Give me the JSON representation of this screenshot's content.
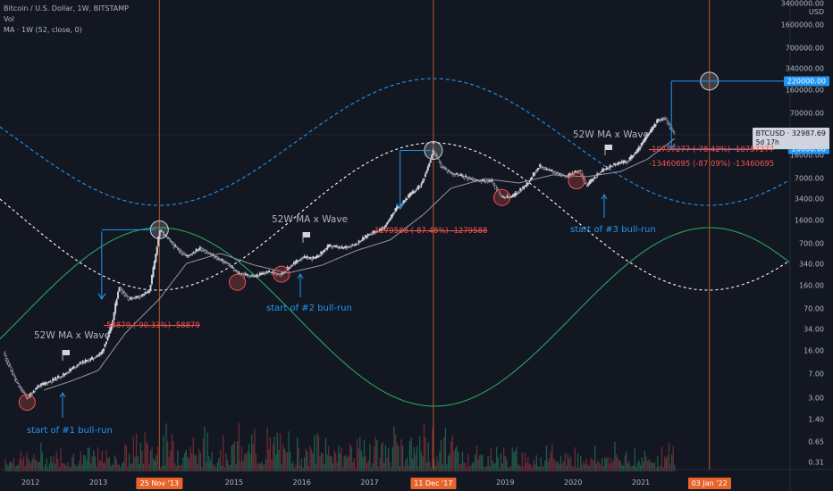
{
  "legend": {
    "title": "Bitcoin / U.S. Dollar, 1W, BITSTAMP",
    "vol": "Vol",
    "ma": "MA · 1W (52, close, 0)"
  },
  "price_axis": {
    "currency": "USD",
    "ticks": [
      "3400000.00",
      "1600000.00",
      "700000.00",
      "340000.00",
      "160000.00",
      "70000.00",
      "16000.00",
      "7000.00",
      "3400.00",
      "1600.00",
      "700.00",
      "340.00",
      "160.00",
      "70.00",
      "34.00",
      "16.00",
      "7.00",
      "3.00",
      "1.40",
      "0.65",
      "0.31"
    ],
    "tick_values": [
      3400000,
      1600000,
      700000,
      340000,
      160000,
      70000,
      16000,
      7000,
      3400,
      1600,
      700,
      340,
      160,
      70,
      34,
      16,
      7,
      3,
      1.4,
      0.65,
      0.31
    ],
    "tags": [
      {
        "label": "220000.00",
        "value": 220000
      },
      {
        "label": "20000.00",
        "value": 20000
      }
    ],
    "current": {
      "label": "BTCUSD",
      "price": "32987.69",
      "countdown": "5d 17h"
    }
  },
  "time_axis": {
    "ticks": [
      {
        "label": "2012",
        "year": 2012.0
      },
      {
        "label": "2013",
        "year": 2013.0
      },
      {
        "label": "2015",
        "year": 2015.0
      },
      {
        "label": "2016",
        "year": 2016.0
      },
      {
        "label": "2017",
        "year": 2017.0
      },
      {
        "label": "2019",
        "year": 2019.0
      },
      {
        "label": "2020",
        "year": 2020.0
      },
      {
        "label": "2021",
        "year": 2021.0
      }
    ],
    "tags": [
      {
        "label": "25 Nov '13",
        "year": 2013.9
      },
      {
        "label": "11 Dec '17",
        "year": 2017.94
      },
      {
        "label": "03 Jan '22",
        "year": 2022.01
      }
    ]
  },
  "annotations": {
    "wave_labels": [
      "52W MA x Wave",
      "52W MA x Wave",
      "52W MA x Wave"
    ],
    "bull_runs": [
      "start of #1 bull-run",
      "start of #2 bull-run",
      "start of #3 bull-run"
    ],
    "drops": [
      {
        "text": "-58879 (-90.33%) -58879",
        "struck": true
      },
      {
        "text": "-1279588 (-87.48%) -1279588",
        "struck": true
      },
      {
        "text": "-10757277 (-78.42%) -10757277",
        "struck": true
      },
      {
        "text": "-13460695 (-87.09%) -13460695",
        "struck": false
      }
    ]
  },
  "colors": {
    "background": "#131722",
    "candle_up": "#d1d4dc",
    "ma_line": "#9598a1",
    "blue_wave": "#2196f3",
    "white_wave": "#ffffff",
    "green_wave": "#26a65b",
    "vertical_line": "#e8642b",
    "bottom_circle": "#ef5350",
    "volume_up": "#1e5b4b",
    "volume_down": "#6b2a33"
  },
  "chart_data": {
    "type": "line",
    "scale": "log",
    "ylim": [
      0.31,
      3400000
    ],
    "xlim": [
      2011.55,
      2023.2
    ],
    "series": [
      {
        "name": "",
        "x": [
          2011.6,
          2011.8,
          2011.95,
          2012.1,
          2012.3,
          2012.5,
          2012.7,
          2012.9,
          2013.05,
          2013.2,
          2013.3,
          2013.45,
          2013.6,
          2013.75,
          2013.85,
          2013.9,
          2014.0,
          2014.15,
          2014.3,
          2014.5,
          2014.7,
          2014.9,
          2015.05,
          2015.3,
          2015.5,
          2015.7,
          2015.85,
          2016.0,
          2016.2,
          2016.4,
          2016.6,
          2016.8,
          2017.0,
          2017.2,
          2017.4,
          2017.6,
          2017.75,
          2017.85,
          2017.94,
          2018.05,
          2018.2,
          2018.4,
          2018.6,
          2018.8,
          2018.95,
          2019.1,
          2019.3,
          2019.5,
          2019.7,
          2019.9,
          2020.1,
          2020.2,
          2020.4,
          2020.6,
          2020.8,
          2020.95,
          2021.1,
          2021.25,
          2021.35,
          2021.45,
          2021.5
        ],
        "y": [
          15,
          5,
          3,
          4.5,
          5.5,
          7,
          10,
          12,
          15,
          40,
          150,
          100,
          110,
          130,
          500,
          1150,
          900,
          600,
          450,
          600,
          450,
          350,
          250,
          220,
          260,
          240,
          330,
          430,
          420,
          650,
          600,
          700,
          1000,
          1200,
          2500,
          4000,
          5500,
          10000,
          19000,
          11000,
          8500,
          7500,
          6500,
          6400,
          3600,
          3700,
          5500,
          11000,
          9000,
          7500,
          9500,
          5500,
          9000,
          11500,
          13000,
          19000,
          33000,
          55000,
          60000,
          40000,
          33000
        ]
      },
      {
        "name": "",
        "x": [
          2012.2,
          2012.6,
          2013.0,
          2013.4,
          2013.9,
          2014.3,
          2014.8,
          2015.3,
          2015.8,
          2016.3,
          2016.8,
          2017.3,
          2017.8,
          2018.2,
          2018.7,
          2019.2,
          2019.7,
          2020.2,
          2020.7,
          2021.1,
          2021.5
        ],
        "y": [
          4,
          5.5,
          8,
          30,
          100,
          350,
          500,
          330,
          250,
          330,
          550,
          800,
          2000,
          5000,
          7000,
          6000,
          8000,
          7500,
          9000,
          14000,
          29000
        ]
      }
    ],
    "waves": {
      "blue_peaks": [
        2013.9,
        2017.94,
        2022.01
      ],
      "white_peaks": [
        2012.3,
        2017.94
      ],
      "green_peaks": [
        2013.9,
        2017.94,
        2022.01
      ]
    },
    "target_high": 220000,
    "target_low": 20000
  }
}
